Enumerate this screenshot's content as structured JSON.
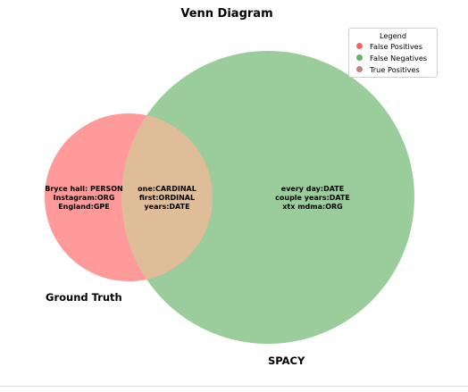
{
  "title": "Venn Diagram",
  "colors": {
    "left_circle": "#ff9a9a",
    "right_circle": "#9bcc9b",
    "overlap": "#e0bd99",
    "false_positive_dot": "#f06464",
    "false_negative_dot": "#66b266",
    "true_positive_dot": "#c1817c"
  },
  "sets": {
    "left_label": "Ground Truth",
    "right_label": "SPACY"
  },
  "regions": {
    "left_only": [
      "Bryce hall: PERSON",
      "Instagram:ORG",
      "England:GPE"
    ],
    "overlap": [
      "one:CARDINAL",
      "first:ORDINAL",
      "years:DATE"
    ],
    "right_only": [
      "every day:DATE",
      "couple years:DATE",
      "xtx mdma:ORG"
    ]
  },
  "legend": {
    "title": "Legend",
    "items": [
      "False Positives",
      "False Negatives",
      "True Positives"
    ]
  }
}
